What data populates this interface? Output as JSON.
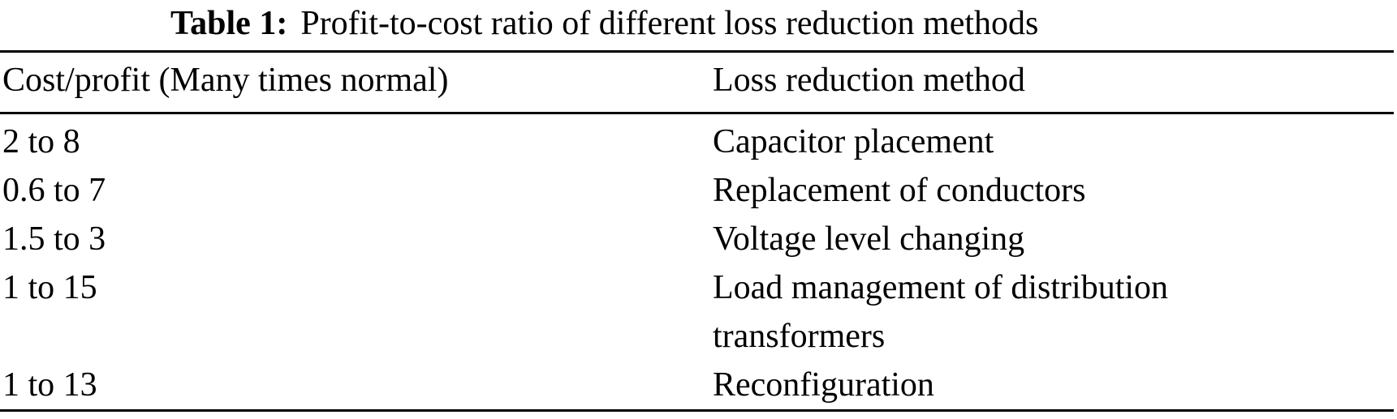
{
  "caption": {
    "label": "Table 1:",
    "text": "Profit-to-cost ratio of different loss reduction methods"
  },
  "table": {
    "columns": [
      "Cost/profit (Many times normal)",
      "Loss reduction method"
    ],
    "rows": [
      {
        "ratio": "2 to 8",
        "method": "Capacitor placement"
      },
      {
        "ratio": "0.6 to 7",
        "method": "Replacement of conductors"
      },
      {
        "ratio": "1.5 to 3",
        "method": "Voltage level changing"
      },
      {
        "ratio": "1 to 15",
        "method": "Load management of distribution\ntransformers"
      },
      {
        "ratio": "1 to 13",
        "method": "Reconfiguration"
      }
    ]
  },
  "colors": {
    "background": "#ffffff",
    "text": "#000000",
    "rule": "#000000"
  }
}
